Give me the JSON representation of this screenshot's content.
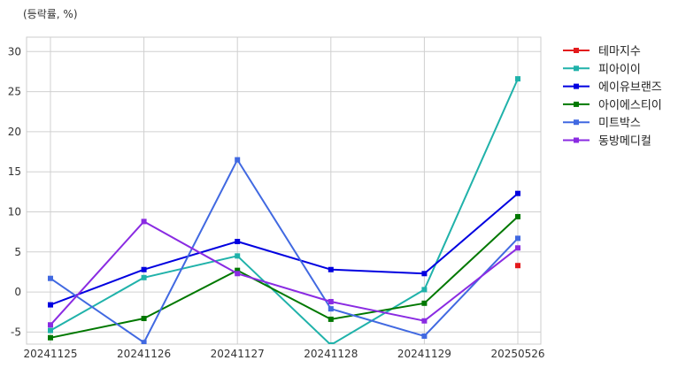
{
  "chart_data": {
    "type": "line",
    "unit_label": "(등락률, %)",
    "categories": [
      "20241125",
      "20241126",
      "20241127",
      "20241128",
      "20241129",
      "20250526"
    ],
    "ylim": [
      -6.5,
      31.8
    ],
    "yticks": [
      -5,
      0,
      5,
      10,
      15,
      20,
      25,
      30
    ],
    "grid": true,
    "legend_position": "outside-right",
    "series": [
      {
        "name": "테마지수",
        "color": "#e31a1c",
        "values": [
          null,
          null,
          null,
          null,
          null,
          3.3
        ]
      },
      {
        "name": "피아이이",
        "color": "#20b2aa",
        "values": [
          -4.8,
          1.8,
          4.5,
          -6.6,
          0.3,
          26.6
        ]
      },
      {
        "name": "에이유브랜즈",
        "color": "#0000e0",
        "values": [
          -1.6,
          2.8,
          6.3,
          2.8,
          2.3,
          12.3
        ]
      },
      {
        "name": "아이에스티이",
        "color": "#007800",
        "values": [
          -5.7,
          -3.3,
          2.7,
          -3.4,
          -1.4,
          9.4
        ]
      },
      {
        "name": "미트박스",
        "color": "#4169e1",
        "values": [
          1.7,
          -6.3,
          16.5,
          -2.1,
          -5.5,
          6.7
        ]
      },
      {
        "name": "동방메디컬",
        "color": "#8a2be2",
        "values": [
          -4.1,
          8.8,
          2.3,
          -1.2,
          -3.6,
          5.5
        ]
      }
    ]
  }
}
